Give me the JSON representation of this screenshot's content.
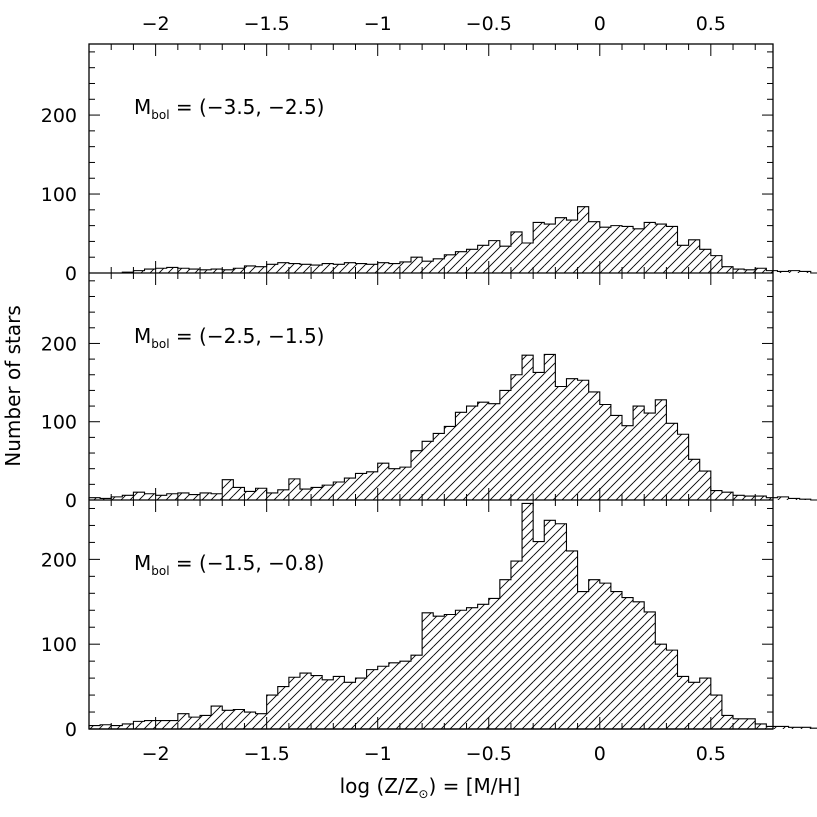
{
  "chart_data": {
    "type": "bar",
    "xlabel_parts": {
      "pre": "log (Z/Z",
      "sub": "⊙",
      "post": ") = [M/H]"
    },
    "ylabel": "Number of stars",
    "xlim": [
      -2.3,
      0.78
    ],
    "bin_width": 0.05,
    "bin_start": -2.3,
    "x_ticks": [
      -2,
      -1.5,
      -1,
      -0.5,
      0,
      0.5
    ],
    "x_tick_labels": [
      "−2",
      "−1.5",
      "−1",
      "−0.5",
      "0",
      "0.5"
    ],
    "y_ticks": [
      0,
      100,
      200
    ],
    "y_tick_labels": [
      "0",
      "100",
      "200"
    ],
    "top_axis_labels": true,
    "fill": "hatched",
    "panels": [
      {
        "label_main": "M",
        "label_sub": "bol",
        "label_range": " = (−3.5, −2.5)",
        "ylim": [
          0,
          290
        ],
        "values": [
          0,
          0,
          0,
          1,
          3,
          5,
          6,
          7,
          6,
          5,
          4,
          5,
          4,
          6,
          9,
          8,
          11,
          13,
          12,
          11,
          10,
          12,
          11,
          13,
          12,
          11,
          13,
          12,
          14,
          20,
          15,
          18,
          23,
          27,
          30,
          35,
          41,
          34,
          52,
          38,
          64,
          62,
          70,
          67,
          84,
          65,
          58,
          60,
          59,
          56,
          64,
          62,
          59,
          35,
          42,
          30,
          22,
          8,
          5,
          4,
          6,
          3,
          2,
          3,
          2,
          0,
          0,
          0,
          0,
          0,
          0,
          0
        ]
      },
      {
        "label_main": "M",
        "label_sub": "bol",
        "label_range": " = (−2.5, −1.5)",
        "ylim": [
          0,
          290
        ],
        "values": [
          3,
          2,
          4,
          6,
          10,
          8,
          6,
          8,
          9,
          7,
          9,
          8,
          26,
          16,
          11,
          15,
          9,
          13,
          27,
          14,
          16,
          19,
          23,
          28,
          34,
          36,
          47,
          40,
          42,
          63,
          75,
          85,
          94,
          112,
          120,
          125,
          123,
          140,
          160,
          185,
          163,
          186,
          145,
          155,
          153,
          138,
          122,
          108,
          95,
          120,
          111,
          128,
          98,
          84,
          52,
          37,
          12,
          10,
          6,
          5,
          5,
          3,
          4,
          2,
          1,
          0,
          0,
          0,
          0,
          0,
          0,
          0
        ]
      },
      {
        "label_main": "M",
        "label_sub": "bol",
        "label_range": " = (−1.5, −0.8)",
        "ylim": [
          0,
          270
        ],
        "values": [
          4,
          5,
          4,
          6,
          9,
          10,
          10,
          10,
          18,
          14,
          16,
          27,
          22,
          23,
          20,
          18,
          40,
          50,
          61,
          66,
          63,
          58,
          62,
          55,
          60,
          70,
          74,
          78,
          80,
          87,
          137,
          133,
          135,
          140,
          143,
          147,
          154,
          176,
          198,
          266,
          221,
          246,
          242,
          210,
          162,
          176,
          172,
          162,
          155,
          150,
          138,
          100,
          93,
          62,
          55,
          60,
          40,
          16,
          12,
          12,
          6,
          3,
          3,
          2,
          2,
          1,
          0,
          0,
          0,
          0,
          0,
          0
        ]
      }
    ]
  }
}
